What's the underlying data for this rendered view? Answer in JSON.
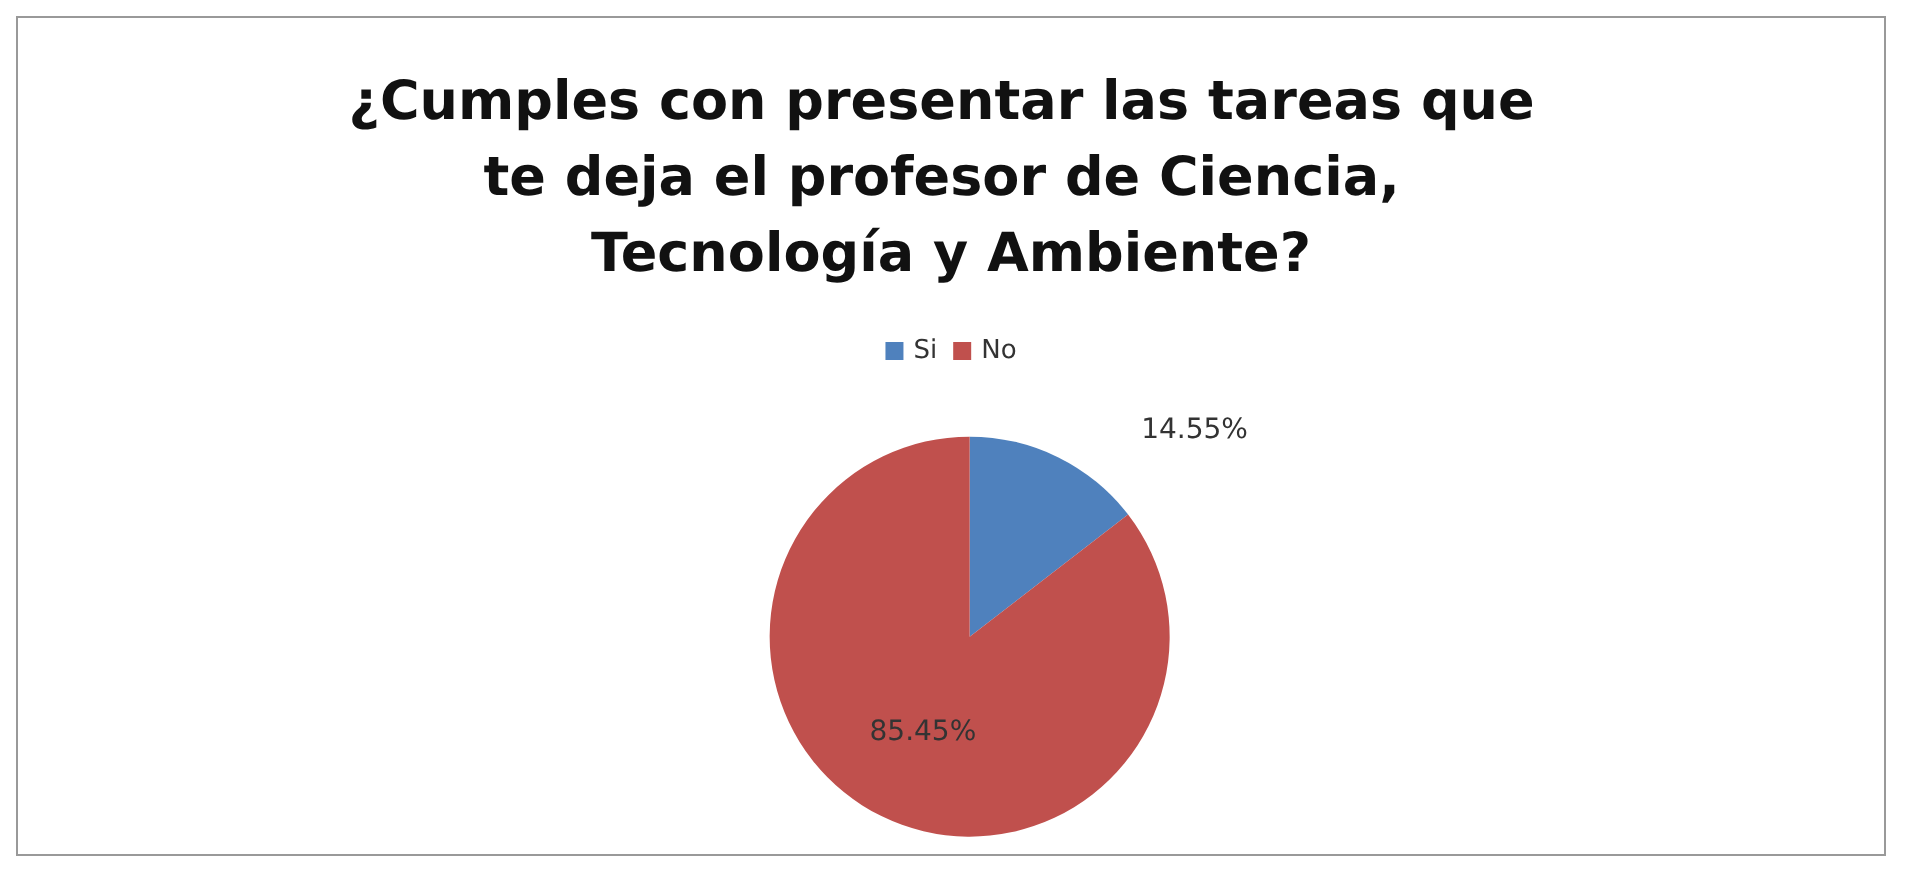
{
  "chart_data": {
    "type": "pie",
    "title": "¿Cumples con presentar las tareas que te deja el profesor de Ciencia, Tecnología y Ambiente?",
    "categories": [
      "Si",
      "No"
    ],
    "values": [
      14.55,
      85.45
    ],
    "colors": [
      "#4f81bd",
      "#c0504d"
    ],
    "value_labels": [
      "14.55%",
      "85.45%"
    ],
    "legend": "top"
  }
}
